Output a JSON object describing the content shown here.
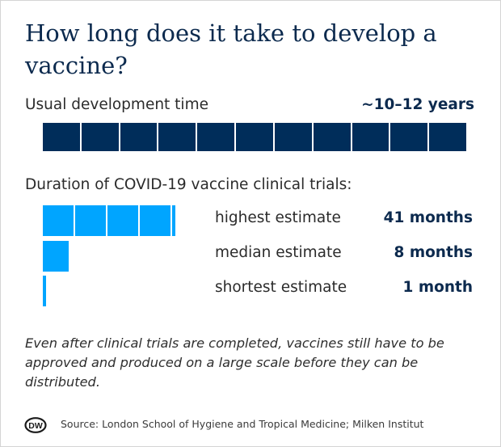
{
  "header": {
    "title": "How long does it take to develop a vaccine?"
  },
  "usual": {
    "label": "Usual development time",
    "value": "~10–12 years"
  },
  "covid": {
    "section_label": "Duration of COVID-19 vaccine clinical trials:"
  },
  "chart_data": {
    "type": "bar",
    "orientation": "horizontal",
    "unit": "months",
    "segment_size": 10,
    "max_months": 41,
    "categories": [
      "highest estimate",
      "median estimate",
      "shortest estimate"
    ],
    "values": [
      41,
      8,
      1
    ],
    "value_labels": [
      "41 months",
      "8 months",
      "1 month"
    ],
    "usual_development": {
      "label": "Usual development time",
      "value_label": "~10–12 years",
      "segments": 11
    },
    "colors": {
      "usual": "#002d5a",
      "covid": "#00a5ff",
      "text_accent": "#0c2a4e"
    }
  },
  "note": "Even after clinical trials are completed, vaccines still have to be approved and produced on a large scale before they can be distributed.",
  "footer": {
    "logo_text": "DW",
    "source": "Source: London School of Hygiene and Tropical Medicine; Milken Institut"
  }
}
